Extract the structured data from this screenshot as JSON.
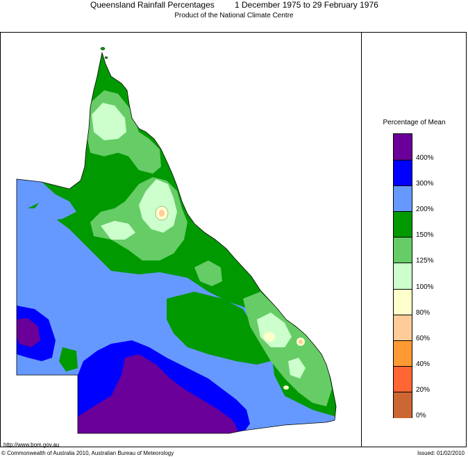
{
  "title": {
    "map_name": "Queensland Rainfall Percentages",
    "period": "1 December 1975 to 29 February 1976"
  },
  "subtitle": "Product of the National Climate Centre",
  "legend": {
    "title": "Percentage of Mean",
    "bins": [
      {
        "color": "#6a0099"
      },
      {
        "color": "#0000ff"
      },
      {
        "color": "#6699ff"
      },
      {
        "color": "#009900"
      },
      {
        "color": "#66cc66"
      },
      {
        "color": "#ccffcc"
      },
      {
        "color": "#ffffcc"
      },
      {
        "color": "#ffcc99"
      },
      {
        "color": "#ff9933"
      },
      {
        "color": "#ff6633"
      },
      {
        "color": "#cc6633"
      }
    ],
    "labels": [
      "400%",
      "300%",
      "200%",
      "150%",
      "125%",
      "100%",
      "80%",
      "60%",
      "40%",
      "20%",
      "0%"
    ]
  },
  "footer": {
    "url": "http://www.bom.gov.au",
    "copyright": "© Commonwealth of Australia 2010, Australian Bureau of Meteorology",
    "issued": "Issued: 01/02/2010"
  },
  "colors": {
    "above_400": "#6a0099",
    "300_400": "#0000ff",
    "200_300": "#6699ff",
    "150_200": "#009900",
    "125_150": "#66cc66",
    "100_125": "#ccffcc",
    "80_100": "#ffffcc",
    "60_80": "#ffcc99"
  }
}
